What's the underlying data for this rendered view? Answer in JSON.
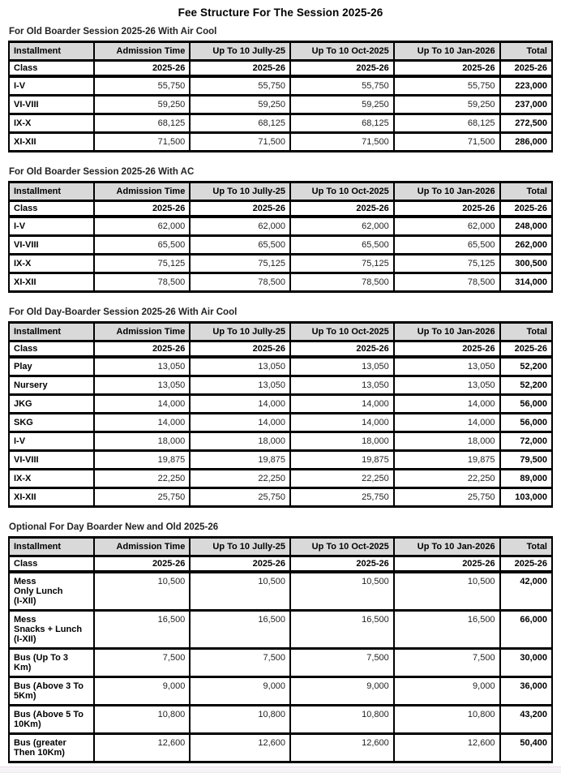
{
  "title": "Fee Structure For The Session 2025-26",
  "columns": [
    "Installment",
    "Admission Time",
    "Up To 10 Jully-25",
    "Up To 10 Oct-2025",
    "Up To 10 Jan-2026",
    "Total"
  ],
  "class_row": {
    "label": "Class",
    "values": [
      "2025-26",
      "2025-26",
      "2025-26",
      "2025-26",
      "2025-26"
    ]
  },
  "colors": {
    "header_bg": "#d9d9d9",
    "border": "#000000",
    "text": "#000000"
  },
  "sections": [
    {
      "title": "For Old Boarder Session 2025-26 With Air Cool",
      "rows": [
        {
          "label": "I-V",
          "values": [
            "55,750",
            "55,750",
            "55,750",
            "55,750"
          ],
          "total": "223,000"
        },
        {
          "label": "VI-VIII",
          "values": [
            "59,250",
            "59,250",
            "59,250",
            "59,250"
          ],
          "total": "237,000"
        },
        {
          "label": "IX-X",
          "values": [
            "68,125",
            "68,125",
            "68,125",
            "68,125"
          ],
          "total": "272,500"
        },
        {
          "label": "XI-XII",
          "values": [
            "71,500",
            "71,500",
            "71,500",
            "71,500"
          ],
          "total": "286,000"
        }
      ]
    },
    {
      "title": "For Old Boarder Session 2025-26 With AC",
      "rows": [
        {
          "label": "I-V",
          "values": [
            "62,000",
            "62,000",
            "62,000",
            "62,000"
          ],
          "total": "248,000"
        },
        {
          "label": "VI-VIII",
          "values": [
            "65,500",
            "65,500",
            "65,500",
            "65,500"
          ],
          "total": "262,000"
        },
        {
          "label": "IX-X",
          "values": [
            "75,125",
            "75,125",
            "75,125",
            "75,125"
          ],
          "total": "300,500"
        },
        {
          "label": "XI-XII",
          "values": [
            "78,500",
            "78,500",
            "78,500",
            "78,500"
          ],
          "total": "314,000"
        }
      ]
    },
    {
      "title": "For Old Day-Boarder Session 2025-26 With Air Cool",
      "rows": [
        {
          "label": "Play",
          "values": [
            "13,050",
            "13,050",
            "13,050",
            "13,050"
          ],
          "total": "52,200"
        },
        {
          "label": "Nursery",
          "values": [
            "13,050",
            "13,050",
            "13,050",
            "13,050"
          ],
          "total": "52,200"
        },
        {
          "label": "JKG",
          "values": [
            "14,000",
            "14,000",
            "14,000",
            "14,000"
          ],
          "total": "56,000"
        },
        {
          "label": "SKG",
          "values": [
            "14,000",
            "14,000",
            "14,000",
            "14,000"
          ],
          "total": "56,000"
        },
        {
          "label": "I-V",
          "values": [
            "18,000",
            "18,000",
            "18,000",
            "18,000"
          ],
          "total": "72,000"
        },
        {
          "label": "VI-VIII",
          "values": [
            "19,875",
            "19,875",
            "19,875",
            "19,875"
          ],
          "total": "79,500"
        },
        {
          "label": "IX-X",
          "values": [
            "22,250",
            "22,250",
            "22,250",
            "22,250"
          ],
          "total": "89,000"
        },
        {
          "label": "XI-XII",
          "values": [
            "25,750",
            "25,750",
            "25,750",
            "25,750"
          ],
          "total": "103,000"
        }
      ]
    },
    {
      "title": "Optional For Day Boarder New and Old 2025-26",
      "rows": [
        {
          "label": "Mess\nOnly Lunch\n(I-XII)",
          "values": [
            "10,500",
            "10,500",
            "10,500",
            "10,500"
          ],
          "total": "42,000"
        },
        {
          "label": "Mess\nSnacks + Lunch\n(I-XII)",
          "values": [
            "16,500",
            "16,500",
            "16,500",
            "16,500"
          ],
          "total": "66,000"
        },
        {
          "label": "Bus (Up To 3\nKm)",
          "values": [
            "7,500",
            "7,500",
            "7,500",
            "7,500"
          ],
          "total": "30,000"
        },
        {
          "label": "Bus (Above 3 To\n5Km)",
          "values": [
            "9,000",
            "9,000",
            "9,000",
            "9,000"
          ],
          "total": "36,000"
        },
        {
          "label": "Bus (Above 5 To\n10Km)",
          "values": [
            "10,800",
            "10,800",
            "10,800",
            "10,800"
          ],
          "total": "43,200"
        },
        {
          "label": "Bus (greater\nThen 10Km)",
          "values": [
            "12,600",
            "12,600",
            "12,600",
            "12,600"
          ],
          "total": "50,400"
        }
      ]
    }
  ]
}
